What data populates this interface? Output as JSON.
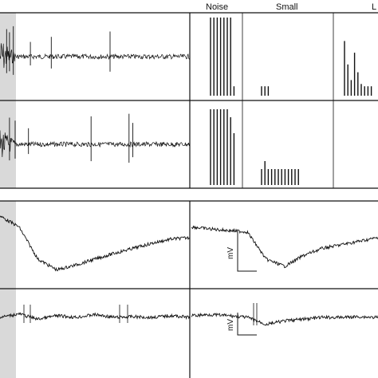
{
  "figure": {
    "top_column_labels": [
      "Noise",
      "Small",
      "L"
    ],
    "scale_bar_label": "mV",
    "stimulus_shade_color": "#d9d9d9",
    "trace_color": "#111111"
  },
  "chart_data": [
    {
      "type": "line",
      "panel": "raw-trace-row-1",
      "description_units": "arbitrary",
      "series": [
        {
          "values": [
            0,
            0.9,
            -0.8,
            0.6,
            -0.5,
            0.4,
            0.1,
            0.05,
            0.08,
            0.0
          ]
        }
      ],
      "spike_times": [
        0.035,
        0.05,
        0.07,
        0.16,
        0.27,
        0.58
      ]
    },
    {
      "type": "line",
      "panel": "raw-trace-row-2",
      "series": [
        {
          "values": [
            0,
            0.7,
            -0.6,
            0.4,
            -0.3,
            0.2,
            0.1,
            0.05,
            0.08,
            0.0
          ]
        }
      ],
      "spike_times": [
        0.05,
        0.08,
        0.15,
        0.48,
        0.68,
        0.7
      ]
    },
    {
      "type": "bar",
      "panel": "histogram-row-1",
      "categories": [
        "Noise",
        "Small",
        "L"
      ],
      "values": [
        [
          1.0,
          1.0,
          1.0,
          1.0,
          1.0,
          1.0,
          1.0,
          0.12
        ],
        [
          0.12,
          0.12,
          0.12
        ],
        [
          0.7,
          0.4,
          0.2,
          0.55,
          0.3,
          0.15,
          0.12,
          0.12,
          0.12
        ]
      ]
    },
    {
      "type": "bar",
      "panel": "histogram-row-2",
      "categories": [
        "Noise",
        "Small",
        "L"
      ],
      "values": [
        [
          0.95,
          0.95,
          0.95,
          0.95,
          0.95,
          0.95,
          0.85,
          0.65
        ],
        [
          0.2,
          0.3,
          0.2,
          0.2,
          0.2,
          0.2,
          0.2,
          0.2,
          0.2,
          0.2,
          0.2,
          0.2
        ],
        []
      ]
    },
    {
      "type": "line",
      "panel": "slow-trace-row-3-left",
      "series": [
        {
          "values": [
            0.9,
            0.75,
            0.3,
            0.15,
            0.22,
            0.3,
            0.38,
            0.45,
            0.52,
            0.58,
            0.6
          ]
        }
      ]
    },
    {
      "type": "line",
      "panel": "slow-trace-row-3-right",
      "series": [
        {
          "values": [
            0.75,
            0.72,
            0.7,
            0.68,
            0.3,
            0.2,
            0.35,
            0.45,
            0.5,
            0.55,
            0.6
          ]
        }
      ]
    },
    {
      "type": "line",
      "panel": "slow-trace-row-4-left",
      "series": [
        {
          "values": [
            0.5,
            0.6,
            0.45,
            0.55,
            0.5,
            0.58,
            0.5,
            0.52,
            0.5,
            0.55,
            0.5
          ]
        }
      ]
    },
    {
      "type": "line",
      "panel": "slow-trace-row-4-right",
      "series": [
        {
          "values": [
            0.55,
            0.58,
            0.55,
            0.5,
            0.3,
            0.4,
            0.45,
            0.5,
            0.5,
            0.52,
            0.5
          ]
        }
      ]
    }
  ]
}
